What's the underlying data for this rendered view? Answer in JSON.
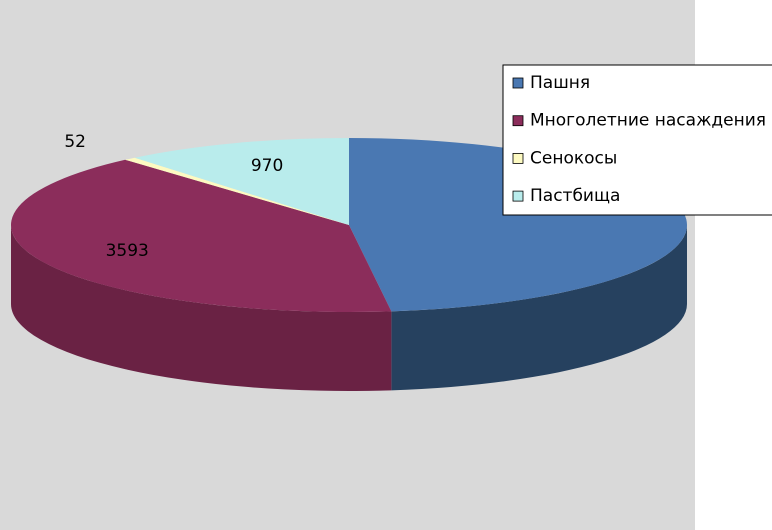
{
  "chart_data": {
    "type": "pie3d",
    "categories": [
      "Пашня",
      "Многолетние насаждения",
      "Сенокосы",
      "Пастбища"
    ],
    "values": [
      4260,
      3593,
      52,
      970
    ],
    "value_labels": [
      null,
      "3593",
      "52",
      "970"
    ],
    "colors": [
      "#4a78b2",
      "#8b2d5b",
      "#fdfac2",
      "#b9ecec"
    ],
    "side_colors": [
      "#26415f",
      "#6a2244",
      "#c8c590",
      "#8cbcbc"
    ],
    "legend": "right"
  }
}
